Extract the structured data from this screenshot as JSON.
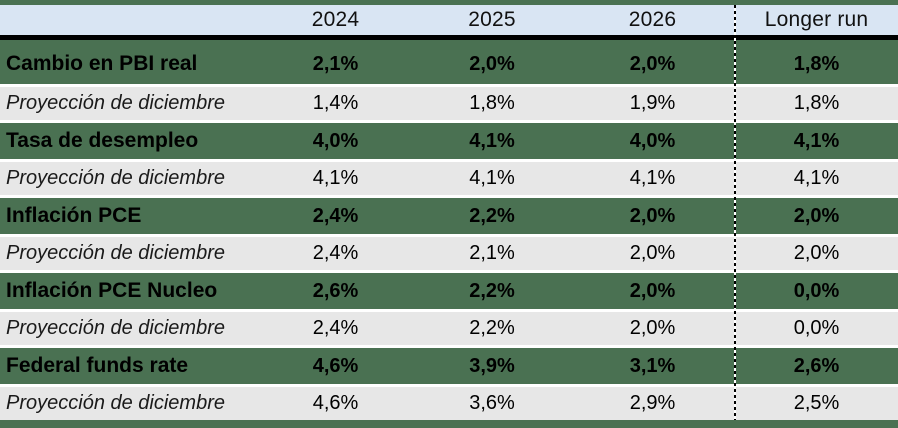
{
  "chart_data": {
    "type": "table",
    "columns": [
      "",
      "2024",
      "2025",
      "2026",
      "Longer run"
    ],
    "rows": [
      {
        "label": "Cambio en PBI real",
        "style": "bold",
        "values": [
          "2,1%",
          "2,0%",
          "2,0%",
          "1,8%"
        ]
      },
      {
        "label": "Proyección de diciembre",
        "style": "projection",
        "values": [
          "1,4%",
          "1,8%",
          "1,9%",
          "1,8%"
        ]
      },
      {
        "label": "Tasa de desempleo",
        "style": "bold",
        "values": [
          "4,0%",
          "4,1%",
          "4,0%",
          "4,1%"
        ]
      },
      {
        "label": "Proyección de diciembre",
        "style": "projection",
        "values": [
          "4,1%",
          "4,1%",
          "4,1%",
          "4,1%"
        ]
      },
      {
        "label": "Inflación PCE",
        "style": "bold",
        "values": [
          "2,4%",
          "2,2%",
          "2,0%",
          "2,0%"
        ]
      },
      {
        "label": "Proyección de diciembre",
        "style": "projection",
        "values": [
          "2,4%",
          "2,1%",
          "2,0%",
          "2,0%"
        ]
      },
      {
        "label": "Inflación PCE Nucleo",
        "style": "bold",
        "values": [
          "2,6%",
          "2,2%",
          "2,0%",
          "0,0%"
        ]
      },
      {
        "label": "Proyección de diciembre",
        "style": "projection",
        "values": [
          "2,4%",
          "2,2%",
          "2,0%",
          "0,0%"
        ]
      },
      {
        "label": "Federal funds rate",
        "style": "bold",
        "values": [
          "4,6%",
          "3,9%",
          "3,1%",
          "2,6%"
        ]
      },
      {
        "label": "Proyección de diciembre",
        "style": "projection",
        "values": [
          "4,6%",
          "3,6%",
          "2,9%",
          "2,5%"
        ]
      }
    ],
    "layout": {
      "grid": "off",
      "longer_run_separator": "dashed-vertical-line"
    }
  },
  "colors": {
    "band_green": "#4a7152",
    "edge_bar_green": "#4a7152",
    "header_blue": "#d9e5f3",
    "projection_gray": "#e7e7e7",
    "header_rule": "#000000",
    "text": "#000000"
  }
}
